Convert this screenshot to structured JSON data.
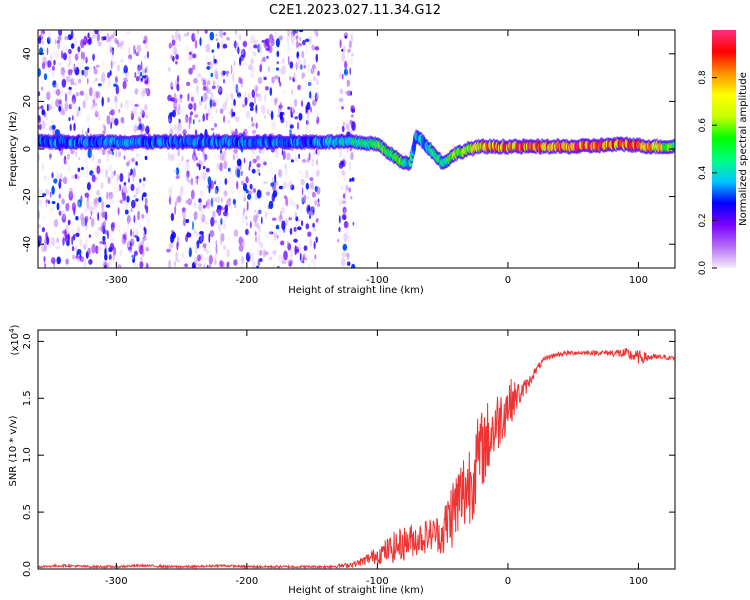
{
  "title": "C2E1.2023.027.11.34.G12",
  "chart_data": [
    {
      "type": "heatmap",
      "xlabel": "Height of straight line (km)",
      "ylabel": "Frequency (Hz)",
      "xlim": [
        -360,
        128
      ],
      "ylim": [
        -50,
        50
      ],
      "xticks": [
        -300,
        -200,
        -100,
        0,
        100
      ],
      "xtick_labels": [
        "-300",
        "-200",
        "-100",
        "0",
        "100"
      ],
      "yticks": [
        -40,
        -20,
        0,
        20,
        40
      ],
      "ytick_labels": [
        "-40",
        "-20",
        "0",
        "20",
        "40"
      ],
      "colorbar": {
        "label": "Normalized spectral amplitude",
        "range": [
          0,
          1
        ],
        "ticks": [
          0.0,
          0.2,
          0.4,
          0.6,
          0.8
        ],
        "tick_labels": [
          "0.0",
          "0.2",
          "0.4",
          "0.6",
          "0.8"
        ],
        "colors": [
          "#f4ecfb",
          "#b46cf4",
          "#7a00ff",
          "#0000ff",
          "#00c8ff",
          "#00ff80",
          "#00ff00",
          "#c8ff00",
          "#ffff00",
          "#ff9000",
          "#ff0000",
          "#ff3080"
        ]
      },
      "center_ridge": {
        "x": [
          -360,
          -150,
          -120,
          -100,
          -90,
          -80,
          -75,
          -70,
          -60,
          -50,
          -40,
          -30,
          -20,
          -10,
          0,
          20,
          50,
          90,
          110,
          128
        ],
        "y": [
          3,
          3,
          3,
          2,
          -2,
          -6,
          -6,
          6,
          0,
          -6,
          -2,
          0,
          1,
          1,
          1,
          1,
          1,
          2,
          1,
          1
        ],
        "amplitude": [
          0.35,
          0.35,
          0.5,
          0.55,
          0.6,
          0.55,
          0.45,
          0.4,
          0.45,
          0.5,
          0.6,
          0.7,
          0.8,
          0.85,
          0.9,
          0.92,
          0.95,
          0.9,
          0.85,
          0.6
        ]
      },
      "noise_regions_x": [
        [
          -360,
          -275
        ],
        [
          -260,
          -145
        ],
        [
          -130,
          -118
        ]
      ]
    },
    {
      "type": "line",
      "xlabel": "Height of straight line (km)",
      "ylabel": "SNR (10 * v/v)",
      "scale_label": "(x10",
      "scale_exponent": "4",
      "scale_suffix": ")",
      "xlim": [
        -360,
        128
      ],
      "ylim": [
        0,
        2.1
      ],
      "xticks": [
        -300,
        -200,
        -100,
        0,
        100
      ],
      "xtick_labels": [
        "-300",
        "-200",
        "-100",
        "0",
        "100"
      ],
      "yticks": [
        0.0,
        0.5,
        1.0,
        1.5,
        2.0
      ],
      "ytick_labels": [
        "0.0",
        "0.5",
        "1.0",
        "1.5",
        "2.0"
      ],
      "series": [
        {
          "color": "#ee3333",
          "x": [
            -360,
            -340,
            -320,
            -300,
            -280,
            -260,
            -240,
            -220,
            -200,
            -180,
            -160,
            -140,
            -125,
            -115,
            -105,
            -95,
            -85,
            -75,
            -65,
            -55,
            -50,
            -45,
            -40,
            -35,
            -30,
            -25,
            -20,
            -15,
            -10,
            -5,
            0,
            5,
            10,
            15,
            20,
            25,
            30,
            40,
            50,
            60,
            70,
            80,
            90,
            100,
            110,
            120,
            128
          ],
          "y": [
            0.02,
            0.03,
            0.02,
            0.02,
            0.03,
            0.02,
            0.02,
            0.03,
            0.02,
            0.02,
            0.02,
            0.02,
            0.03,
            0.05,
            0.1,
            0.15,
            0.2,
            0.25,
            0.28,
            0.32,
            0.3,
            0.45,
            0.55,
            0.65,
            0.75,
            0.9,
            1.05,
            1.15,
            1.25,
            1.35,
            1.45,
            1.5,
            1.55,
            1.62,
            1.72,
            1.8,
            1.86,
            1.89,
            1.9,
            1.9,
            1.9,
            1.9,
            1.89,
            1.86,
            1.86,
            1.86,
            1.85
          ],
          "jitter": [
            0.01,
            0.01,
            0.01,
            0.01,
            0.01,
            0.01,
            0.01,
            0.01,
            0.01,
            0.01,
            0.01,
            0.01,
            0.02,
            0.03,
            0.06,
            0.1,
            0.15,
            0.15,
            0.15,
            0.15,
            0.2,
            0.3,
            0.35,
            0.38,
            0.4,
            0.4,
            0.35,
            0.35,
            0.3,
            0.25,
            0.25,
            0.15,
            0.1,
            0.06,
            0.04,
            0.03,
            0.02,
            0.02,
            0.02,
            0.02,
            0.02,
            0.03,
            0.05,
            0.06,
            0.03,
            0.02,
            0.02
          ]
        }
      ]
    }
  ]
}
